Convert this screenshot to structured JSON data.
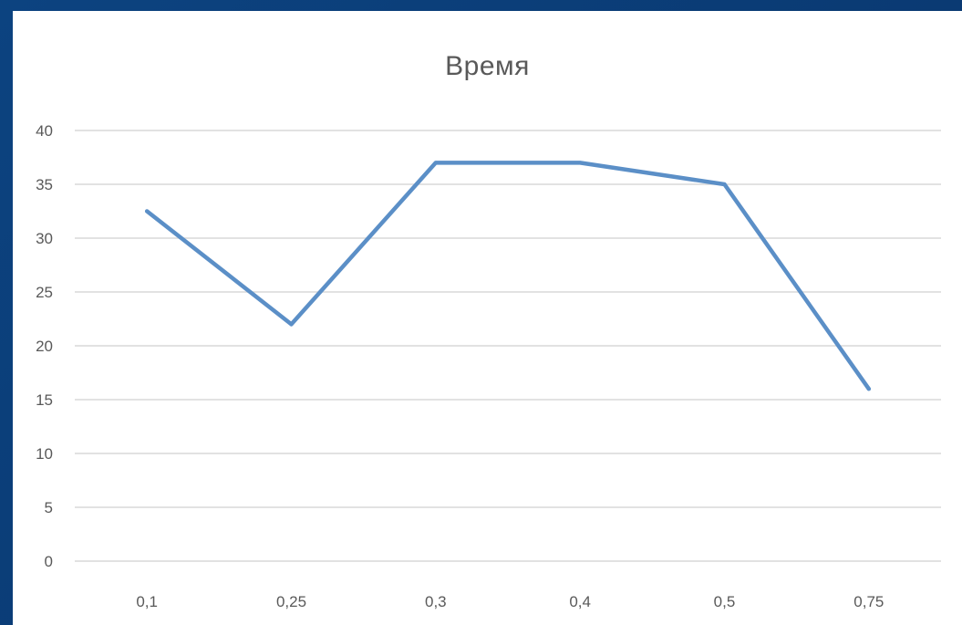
{
  "chart_data": {
    "type": "line",
    "title": "Время",
    "xlabel": "",
    "ylabel": "",
    "categories": [
      "0,1",
      "0,25",
      "0,3",
      "0,4",
      "0,5",
      "0,75"
    ],
    "series": [
      {
        "values": [
          32.5,
          22,
          37,
          37,
          35,
          16
        ],
        "color": "#5b8fc7"
      }
    ],
    "ylim": [
      0,
      40
    ],
    "yticks": [
      "0",
      "5",
      "10",
      "15",
      "20",
      "25",
      "30",
      "35",
      "40"
    ],
    "ytick_values": [
      0,
      5,
      10,
      15,
      20,
      25,
      30,
      35,
      40
    ],
    "grid": true,
    "legend": "none"
  },
  "colors": {
    "background": "#0b3c77",
    "panel": "#ffffff",
    "grid": "#d9d9d9",
    "text": "#595959",
    "line": "#5b8fc7"
  }
}
